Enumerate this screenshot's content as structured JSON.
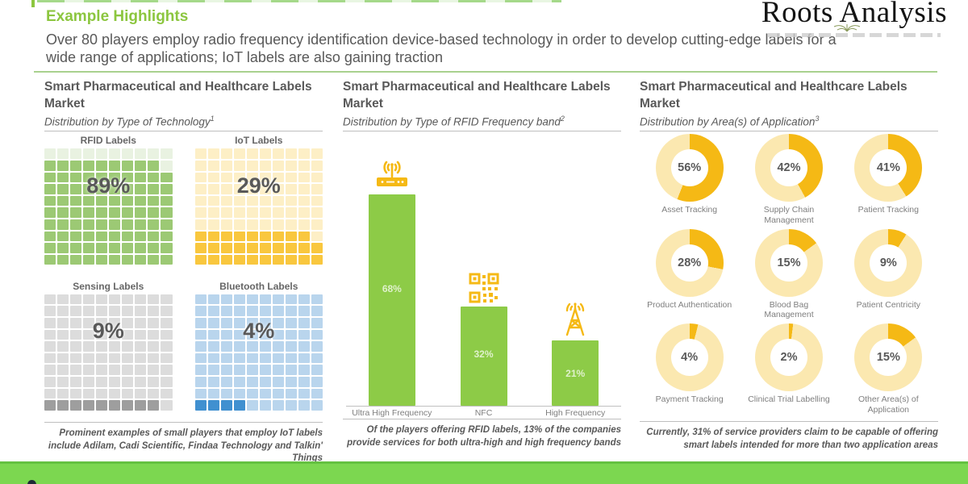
{
  "header": {
    "title": "Example Highlights",
    "summary": "Over 80 players employ radio frequency identification device-based technology in order to develop cutting-edge labels for a wide range of applications; IoT labels are also gaining traction",
    "logo": "Roots Analysis"
  },
  "chart_data": [
    {
      "type": "waffle",
      "title": "Smart Pharmaceutical and Healthcare Labels Market",
      "subtitle": "Distribution by Type of Technology",
      "footnote_superscript": "1",
      "categories": [
        "RFID Labels",
        "IoT Labels",
        "Sensing Labels",
        "Bluetooth Labels"
      ],
      "values": [
        89,
        29,
        9,
        4
      ],
      "colors_filled": [
        "#9CC974",
        "#F9C73E",
        "#9E9E9E",
        "#4090D0"
      ],
      "colors_empty": [
        "#E9F2E1",
        "#FDEFC6",
        "#DCDCDC",
        "#B9D5ED"
      ],
      "footnote": "Prominent examples of small players that employ IoT labels include Adilam, Cadi Scientific, Findaa Technology and Talkin' Things"
    },
    {
      "type": "bar",
      "title": "Smart Pharmaceutical and Healthcare Labels Market",
      "subtitle": "Distribution by Type of RFID Frequency band",
      "footnote_superscript": "2",
      "categories": [
        "Ultra High Frequency",
        "NFC",
        "High Frequency"
      ],
      "values": [
        68,
        32,
        21
      ],
      "ylim": [
        0,
        70
      ],
      "bar_color": "#8DCB47",
      "icons": [
        "wifi-router",
        "qr-code",
        "radio-tower"
      ],
      "icon_color": "#F5B915",
      "footnote": "Of the players offering RFID labels, 13% of the companies provide services for both ultra-high and high frequency bands"
    },
    {
      "type": "pie",
      "title": "Smart Pharmaceutical and Healthcare Labels Market",
      "subtitle": "Distribution by Area(s) of Application",
      "footnote_superscript": "3",
      "categories": [
        "Asset Tracking",
        "Supply Chain Management",
        "Patient Tracking",
        "Product Authentication",
        "Blood Bag Management",
        "Patient Centricity",
        "Payment Tracking",
        "Clinical Trial Labelling",
        "Other Area(s) of Application"
      ],
      "values": [
        56,
        42,
        41,
        28,
        15,
        9,
        4,
        2,
        15
      ],
      "ring_color": "#F5B915",
      "ring_bg": "#FBE8B0",
      "footnote": "Currently, 31% of service providers claim to be capable of offering smart labels intended for more than two application areas"
    }
  ]
}
